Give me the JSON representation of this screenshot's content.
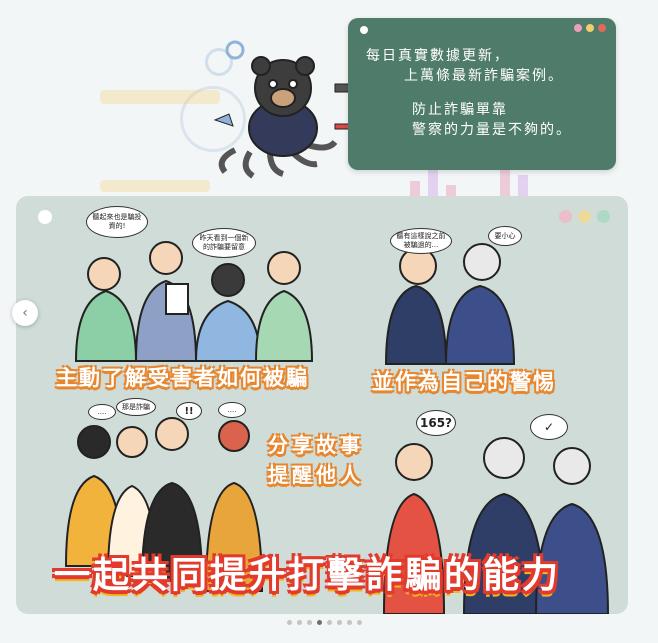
{
  "top_card": {
    "lines": [
      "每日真實數據更新，",
      "上萬條最新詐騙案例。",
      "防止詐騙單靠",
      "警察的力量是不夠的。"
    ]
  },
  "panel": {
    "bubbles": [
      "聽起來也是騙投資的!",
      "昨天看到一個新的詐騙要留意",
      "聽有這樣說之前被騙過的...",
      "要小心",
      "....",
      "那是詐騙",
      "!!",
      "....",
      "165?",
      "✓"
    ],
    "caption_left": "主動了解受害者如何被騙",
    "caption_right": "並作為自己的警惕",
    "caption_share_1": "分享故事",
    "caption_share_2": "提醒他人",
    "big_caption": "一起共同提升打擊詐騙的能力"
  },
  "nav": {
    "prev_symbol": "‹"
  },
  "pager": {
    "count": 8,
    "active_index": 3
  },
  "colors": {
    "card_green": "#4f7b6a",
    "panel_bg": "#cfdcd7",
    "caption_orange": "#e8862e",
    "big_caption_red": "#e23a2c",
    "big_caption_yellow": "#f0b81e"
  }
}
